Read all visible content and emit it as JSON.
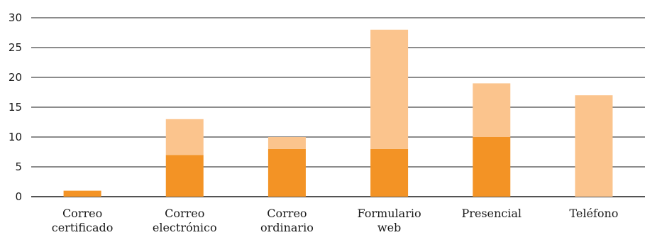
{
  "chart_data": {
    "type": "bar",
    "stacked": true,
    "categories": [
      [
        "Correo",
        "certificado"
      ],
      [
        "Correo",
        "electrónico"
      ],
      [
        "Correo",
        "ordinario"
      ],
      [
        "Formulario",
        "web"
      ],
      [
        "Presencial"
      ],
      [
        "Teléfono"
      ]
    ],
    "series": [
      {
        "values": [
          1,
          7,
          8,
          8,
          10,
          0
        ],
        "color": "#f39325"
      },
      {
        "values": [
          0,
          6,
          2,
          20,
          9,
          17
        ],
        "color": "#fbc48d"
      }
    ],
    "ylim": [
      0,
      30
    ],
    "yticks": [
      0,
      5,
      10,
      15,
      20,
      25,
      30
    ],
    "grid": true,
    "title": "",
    "xlabel": "",
    "ylabel": ""
  }
}
